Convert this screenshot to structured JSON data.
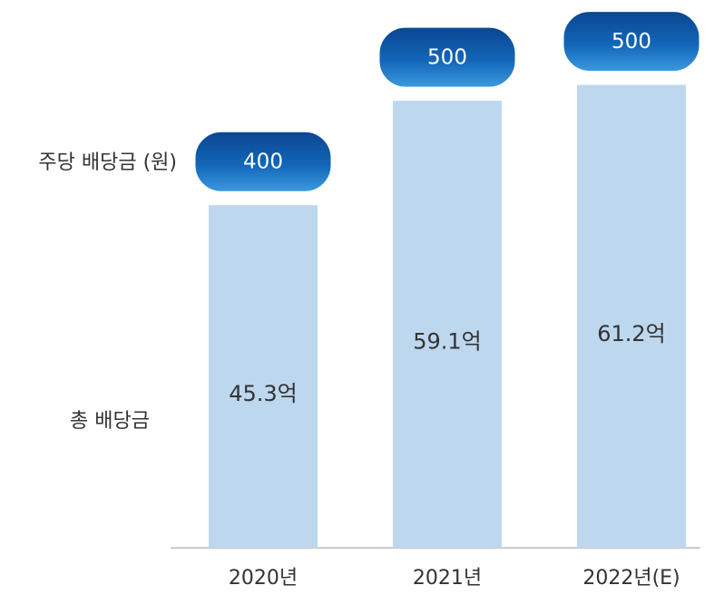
{
  "chart_data": {
    "type": "bar",
    "categories": [
      "2020년",
      "2021년",
      "2022년(E)"
    ],
    "series": [
      {
        "name": "총 배당금",
        "color": "#bdd7ee",
        "values": [
          45.3,
          59.1,
          61.2
        ],
        "value_labels": [
          "45.3억",
          "59.1억",
          "61.2억"
        ]
      },
      {
        "name": "주당 배당금 (원)",
        "color": "#0b5aa8",
        "values": [
          400,
          500,
          500
        ]
      }
    ]
  }
}
